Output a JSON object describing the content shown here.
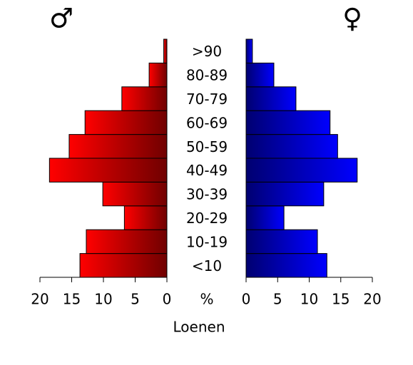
{
  "chart_data": {
    "type": "pyramid",
    "categories": [
      "<10",
      "10-19",
      "20-29",
      "30-39",
      "40-49",
      "50-59",
      "60-69",
      "70-79",
      "80-89",
      ">90"
    ],
    "series": [
      {
        "name": "♂",
        "color": "#ff0000",
        "values": [
          13.7,
          12.7,
          6.7,
          10.1,
          18.5,
          15.4,
          12.9,
          7.1,
          2.8,
          0.5
        ]
      },
      {
        "name": "♀",
        "color": "#0000ff",
        "values": [
          12.8,
          11.3,
          6.0,
          12.3,
          17.6,
          14.5,
          13.3,
          7.9,
          4.4,
          1.0
        ]
      }
    ],
    "xlim": [
      0,
      20
    ],
    "xticks": [
      0,
      5,
      10,
      15,
      20
    ],
    "unit_label": "%",
    "xlabel": "Loenen"
  }
}
